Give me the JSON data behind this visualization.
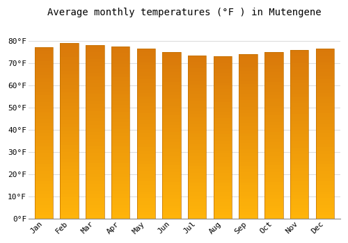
{
  "title": "Average monthly temperatures (°F ) in Mutengene",
  "months": [
    "Jan",
    "Feb",
    "Mar",
    "Apr",
    "May",
    "Jun",
    "Jul",
    "Aug",
    "Sep",
    "Oct",
    "Nov",
    "Dec"
  ],
  "values": [
    77,
    79,
    78,
    77.5,
    76.5,
    75,
    73.5,
    73,
    74,
    75,
    76,
    76.5
  ],
  "bar_color": "#FFA500",
  "bar_color_light": "#FFD060",
  "bar_color_dark": "#E07800",
  "ylim": [
    0,
    88
  ],
  "yticks": [
    0,
    10,
    20,
    30,
    40,
    50,
    60,
    70,
    80
  ],
  "ytick_labels": [
    "0°F",
    "10°F",
    "20°F",
    "30°F",
    "40°F",
    "50°F",
    "60°F",
    "70°F",
    "80°F"
  ],
  "background_color": "#ffffff",
  "grid_color": "#dddddd",
  "title_fontsize": 10,
  "tick_fontsize": 8
}
